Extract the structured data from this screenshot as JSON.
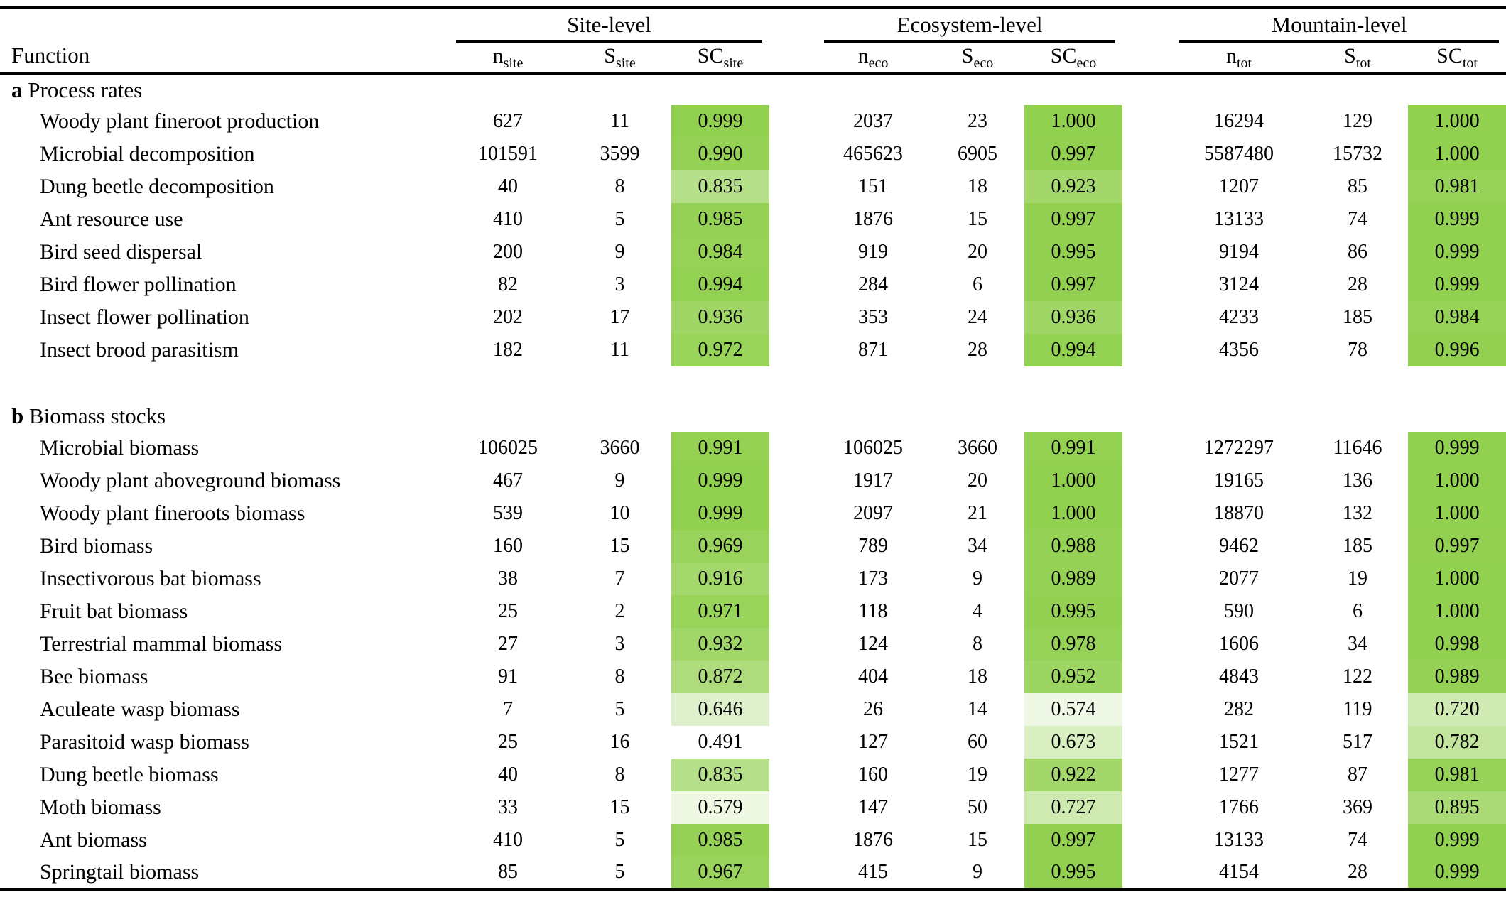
{
  "table": {
    "function_header": "Function",
    "groups": [
      {
        "label": "Site-level",
        "cols": [
          {
            "main": "n",
            "sub": "site"
          },
          {
            "main": "S",
            "sub": "site"
          },
          {
            "main": "SC",
            "sub": "site"
          }
        ]
      },
      {
        "label": "Ecosystem-level",
        "cols": [
          {
            "main": "n",
            "sub": "eco"
          },
          {
            "main": "S",
            "sub": "eco"
          },
          {
            "main": "SC",
            "sub": "eco"
          }
        ]
      },
      {
        "label": "Mountain-level",
        "cols": [
          {
            "main": "n",
            "sub": "tot"
          },
          {
            "main": "S",
            "sub": "tot"
          },
          {
            "main": "SC",
            "sub": "tot"
          }
        ]
      }
    ],
    "sections": [
      {
        "key": "a",
        "title": "Process rates",
        "rows": [
          {
            "function": "Woody plant fineroot production",
            "values": [
              "627",
              "11",
              "0.999",
              "2037",
              "23",
              "1.000",
              "16294",
              "129",
              "1.000"
            ]
          },
          {
            "function": "Microbial decomposition",
            "values": [
              "101591",
              "3599",
              "0.990",
              "465623",
              "6905",
              "0.997",
              "5587480",
              "15732",
              "1.000"
            ]
          },
          {
            "function": "Dung beetle decomposition",
            "values": [
              "40",
              "8",
              "0.835",
              "151",
              "18",
              "0.923",
              "1207",
              "85",
              "0.981"
            ]
          },
          {
            "function": "Ant resource use",
            "values": [
              "410",
              "5",
              "0.985",
              "1876",
              "15",
              "0.997",
              "13133",
              "74",
              "0.999"
            ]
          },
          {
            "function": "Bird seed dispersal",
            "values": [
              "200",
              "9",
              "0.984",
              "919",
              "20",
              "0.995",
              "9194",
              "86",
              "0.999"
            ]
          },
          {
            "function": "Bird flower pollination",
            "values": [
              "82",
              "3",
              "0.994",
              "284",
              "6",
              "0.997",
              "3124",
              "28",
              "0.999"
            ]
          },
          {
            "function": "Insect flower pollination",
            "values": [
              "202",
              "17",
              "0.936",
              "353",
              "24",
              "0.936",
              "4233",
              "185",
              "0.984"
            ]
          },
          {
            "function": "Insect brood parasitism",
            "values": [
              "182",
              "11",
              "0.972",
              "871",
              "28",
              "0.994",
              "4356",
              "78",
              "0.996"
            ]
          }
        ]
      },
      {
        "key": "b",
        "title": "Biomass stocks",
        "rows": [
          {
            "function": "Microbial biomass",
            "values": [
              "106025",
              "3660",
              "0.991",
              "106025",
              "3660",
              "0.991",
              "1272297",
              "11646",
              "0.999"
            ]
          },
          {
            "function": "Woody plant aboveground biomass",
            "values": [
              "467",
              "9",
              "0.999",
              "1917",
              "20",
              "1.000",
              "19165",
              "136",
              "1.000"
            ]
          },
          {
            "function": "Woody plant fineroots biomass",
            "values": [
              "539",
              "10",
              "0.999",
              "2097",
              "21",
              "1.000",
              "18870",
              "132",
              "1.000"
            ]
          },
          {
            "function": "Bird biomass",
            "values": [
              "160",
              "15",
              "0.969",
              "789",
              "34",
              "0.988",
              "9462",
              "185",
              "0.997"
            ]
          },
          {
            "function": "Insectivorous bat biomass",
            "values": [
              "38",
              "7",
              "0.916",
              "173",
              "9",
              "0.989",
              "2077",
              "19",
              "1.000"
            ]
          },
          {
            "function": "Fruit bat biomass",
            "values": [
              "25",
              "2",
              "0.971",
              "118",
              "4",
              "0.995",
              "590",
              "6",
              "1.000"
            ]
          },
          {
            "function": "Terrestrial mammal biomass",
            "values": [
              "27",
              "3",
              "0.932",
              "124",
              "8",
              "0.978",
              "1606",
              "34",
              "0.998"
            ]
          },
          {
            "function": "Bee biomass",
            "values": [
              "91",
              "8",
              "0.872",
              "404",
              "18",
              "0.952",
              "4843",
              "122",
              "0.989"
            ]
          },
          {
            "function": "Aculeate wasp biomass",
            "values": [
              "7",
              "5",
              "0.646",
              "26",
              "14",
              "0.574",
              "282",
              "119",
              "0.720"
            ]
          },
          {
            "function": "Parasitoid wasp biomass",
            "values": [
              "25",
              "16",
              "0.491",
              "127",
              "60",
              "0.673",
              "1521",
              "517",
              "0.782"
            ]
          },
          {
            "function": "Dung beetle biomass",
            "values": [
              "40",
              "8",
              "0.835",
              "160",
              "19",
              "0.922",
              "1277",
              "87",
              "0.981"
            ]
          },
          {
            "function": "Moth biomass",
            "values": [
              "33",
              "15",
              "0.579",
              "147",
              "50",
              "0.727",
              "1766",
              "369",
              "0.895"
            ]
          },
          {
            "function": "Ant biomass",
            "values": [
              "410",
              "5",
              "0.985",
              "1876",
              "15",
              "0.997",
              "13133",
              "74",
              "0.999"
            ]
          },
          {
            "function": "Springtail biomass",
            "values": [
              "85",
              "5",
              "0.967",
              "415",
              "9",
              "0.995",
              "4154",
              "28",
              "0.999"
            ]
          }
        ]
      }
    ]
  },
  "colors": {
    "sc_fill_max": "#92D050",
    "sc_fill_min": "#FFFFFF",
    "rule": "#000000"
  },
  "sc_scale": {
    "white_at": 0.5,
    "full_at": 1.0
  }
}
